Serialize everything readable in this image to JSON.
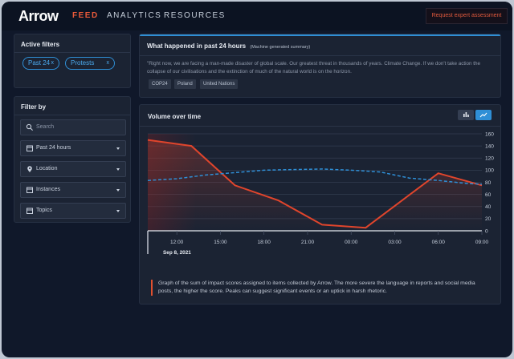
{
  "header": {
    "logo": "Arrow",
    "nav": [
      {
        "label": "FEED",
        "active": true
      },
      {
        "label": "ANALYTICS",
        "active": false
      },
      {
        "label": "RESOURCES",
        "active": false
      }
    ],
    "request_button": "Request expert assessment"
  },
  "active_filters": {
    "title": "Active filters",
    "chips": [
      {
        "label": "Past 24",
        "close": "x"
      },
      {
        "label": "Protests",
        "close": "x"
      }
    ]
  },
  "filter_by": {
    "title": "Filter by",
    "search_placeholder": "Search",
    "dropdowns": [
      {
        "label": "Past 24 hours",
        "icon": "calendar-icon"
      },
      {
        "label": "Location",
        "icon": "location-pin-icon"
      },
      {
        "label": "Instances",
        "icon": "calendar-icon"
      },
      {
        "label": "Topics",
        "icon": "calendar-icon"
      }
    ]
  },
  "summary": {
    "title": "What happened in past 24 hours",
    "subtitle": "(Machine generated summary)",
    "quote": "\"Right now, we are facing a man-made disaster of global scale. Our greatest threat in thousands of years. Climate Change. If we don't take action the collapse of our civilisations and the extinction of much of the natural world is on the horizon.",
    "tags": [
      "COP24",
      "Poland",
      "United Nations"
    ],
    "accent_color": "#2f8fd6"
  },
  "volume": {
    "title": "Volume over time",
    "view_options": [
      "bar-chart-icon",
      "line-chart-icon"
    ],
    "selected_view": "line-chart-icon",
    "date_label": "Sep 8, 2021",
    "description": "Graph of the sum of impact scores assigned to items collected by Arrow. The more severe the language in reports and social media posts, the higher the score. Peaks can suggest significant events or an uptick in harsh rhetoric."
  },
  "chart_data": {
    "type": "line",
    "x": [
      "10:00",
      "11:00",
      "12:00",
      "13:00",
      "14:00",
      "15:00",
      "16:00",
      "17:00",
      "18:00",
      "19:00",
      "20:00",
      "21:00",
      "22:00",
      "23:00",
      "00:00",
      "01:00",
      "02:00",
      "03:00",
      "04:00",
      "05:00",
      "06:00",
      "07:00",
      "08:00",
      "09:00"
    ],
    "x_ticks": [
      "12:00",
      "15:00",
      "18:00",
      "21:00",
      "00:00",
      "03:00",
      "06:00",
      "09:00"
    ],
    "ylim": [
      0,
      160
    ],
    "y_ticks": [
      0,
      20,
      40,
      60,
      80,
      100,
      120,
      140,
      160
    ],
    "grid": true,
    "series": [
      {
        "color": "#e0452c",
        "style": "solid",
        "points": [
          [
            "10:00",
            150
          ],
          [
            "13:00",
            140
          ],
          [
            "16:00",
            75
          ],
          [
            "19:00",
            50
          ],
          [
            "22:00",
            10
          ],
          [
            "01:00",
            5
          ],
          [
            "06:00",
            95
          ],
          [
            "09:00",
            75
          ]
        ]
      },
      {
        "color": "#2f8fd6",
        "style": "dashed",
        "points": [
          [
            "10:00",
            83
          ],
          [
            "12:00",
            86
          ],
          [
            "14:00",
            92
          ],
          [
            "16:00",
            96
          ],
          [
            "18:00",
            100
          ],
          [
            "20:00",
            101
          ],
          [
            "22:00",
            102
          ],
          [
            "00:00",
            100
          ],
          [
            "02:00",
            97
          ],
          [
            "04:00",
            87
          ],
          [
            "06:00",
            83
          ],
          [
            "08:00",
            78
          ],
          [
            "09:00",
            77
          ]
        ]
      }
    ]
  }
}
